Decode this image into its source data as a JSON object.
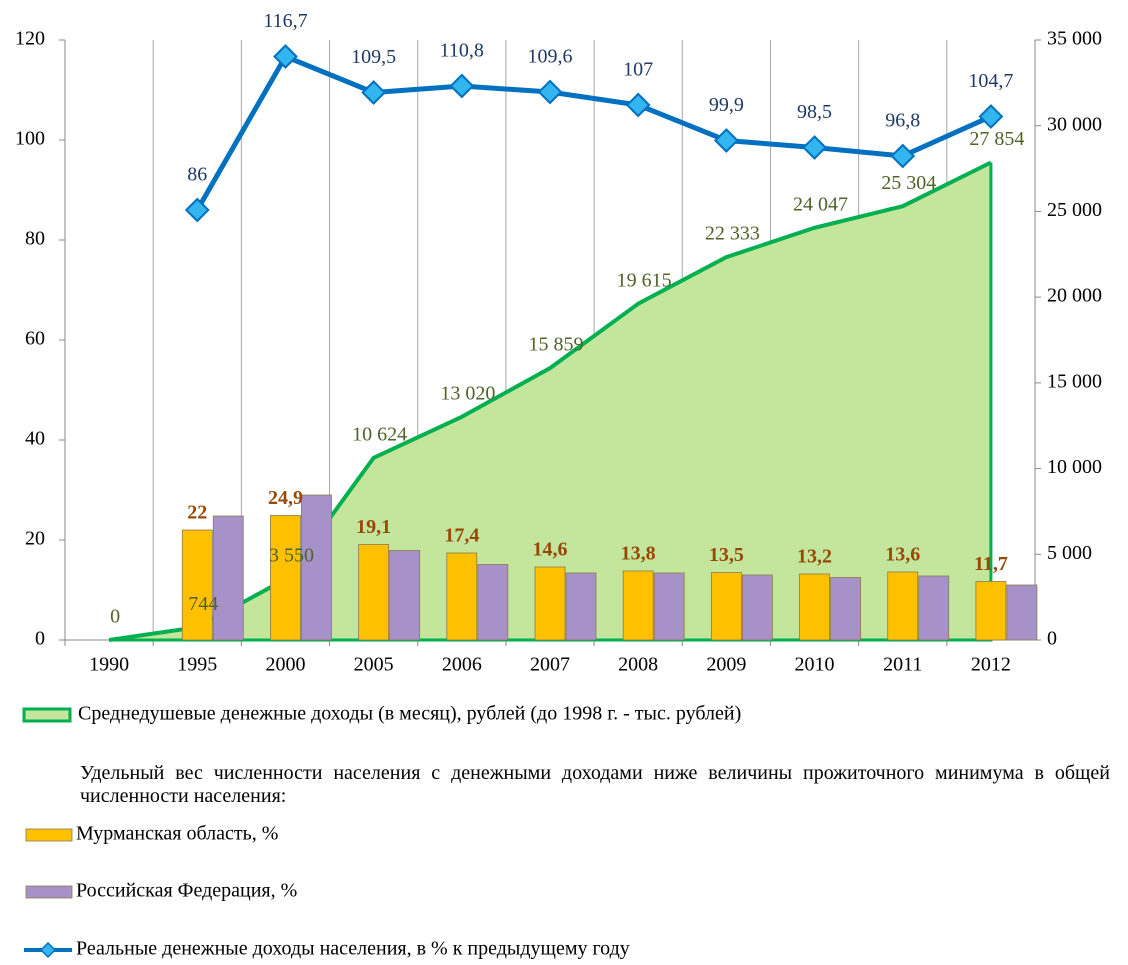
{
  "chart_data": {
    "type": "combo",
    "categories": [
      "1990",
      "1995",
      "2000",
      "2005",
      "2006",
      "2007",
      "2008",
      "2009",
      "2010",
      "2011",
      "2012"
    ],
    "ylim": [
      0,
      120
    ],
    "yticks": [
      0,
      20,
      40,
      60,
      80,
      100,
      120
    ],
    "y2lim": [
      0,
      35000
    ],
    "y2ticks": [
      0,
      {
        "value": 5000,
        "label": "5 000"
      },
      {
        "value": 10000,
        "label": "10 000"
      },
      {
        "value": 15000,
        "label": "15 000"
      },
      {
        "value": 20000,
        "label": "20 000"
      },
      {
        "value": 25000,
        "label": "25 000"
      },
      {
        "value": 30000,
        "label": "30 000"
      },
      {
        "value": 35000,
        "label": "35 000"
      }
    ],
    "legend_note": "Удельный вес численности населения с денежными доходами ниже величины прожиточного минимума в общей численности населения:",
    "series": [
      {
        "name": "Среднедушевые денежные доходы (в месяц), рублей (до 1998 г. - тыс. рублей)",
        "type": "area",
        "axis": "y2",
        "color": "#00b050",
        "fill": "#c4e59c",
        "values": [
          0,
          744,
          3550,
          10624,
          13020,
          15859,
          19615,
          22333,
          24047,
          25304,
          27854
        ],
        "value_labels": [
          "0",
          "744",
          "3 550",
          "10 624",
          "13 020",
          "15 859",
          "19 615",
          "22 333",
          "24 047",
          "25 304",
          "27 854"
        ]
      },
      {
        "name": "Мурманская область, %",
        "type": "bar",
        "color": "#ffc000",
        "values": [
          null,
          22,
          24.9,
          19.1,
          17.4,
          14.6,
          13.8,
          13.5,
          13.2,
          13.6,
          11.7
        ],
        "value_labels": [
          null,
          "22",
          "24,9",
          "19,1",
          "17,4",
          "14,6",
          "13,8",
          "13,5",
          "13,2",
          "13,6",
          "11,7"
        ]
      },
      {
        "name": "Российская Федерация, %",
        "type": "bar",
        "color": "#a791c9",
        "values": [
          null,
          24.8,
          29,
          17.9,
          15.1,
          13.4,
          13.4,
          13.0,
          12.5,
          12.8,
          11.0
        ]
      },
      {
        "name": "Реальные денежные доходы населения, в % к предыдущему году",
        "type": "line",
        "color": "#0070c0",
        "values": [
          null,
          86,
          116.7,
          109.5,
          110.8,
          109.6,
          107,
          99.9,
          98.5,
          96.8,
          104.7
        ],
        "value_labels": [
          null,
          "86",
          "116,7",
          "109,5",
          "110,8",
          "109,6",
          "107",
          "99,9",
          "98,5",
          "96,8",
          "104,7"
        ]
      }
    ]
  }
}
